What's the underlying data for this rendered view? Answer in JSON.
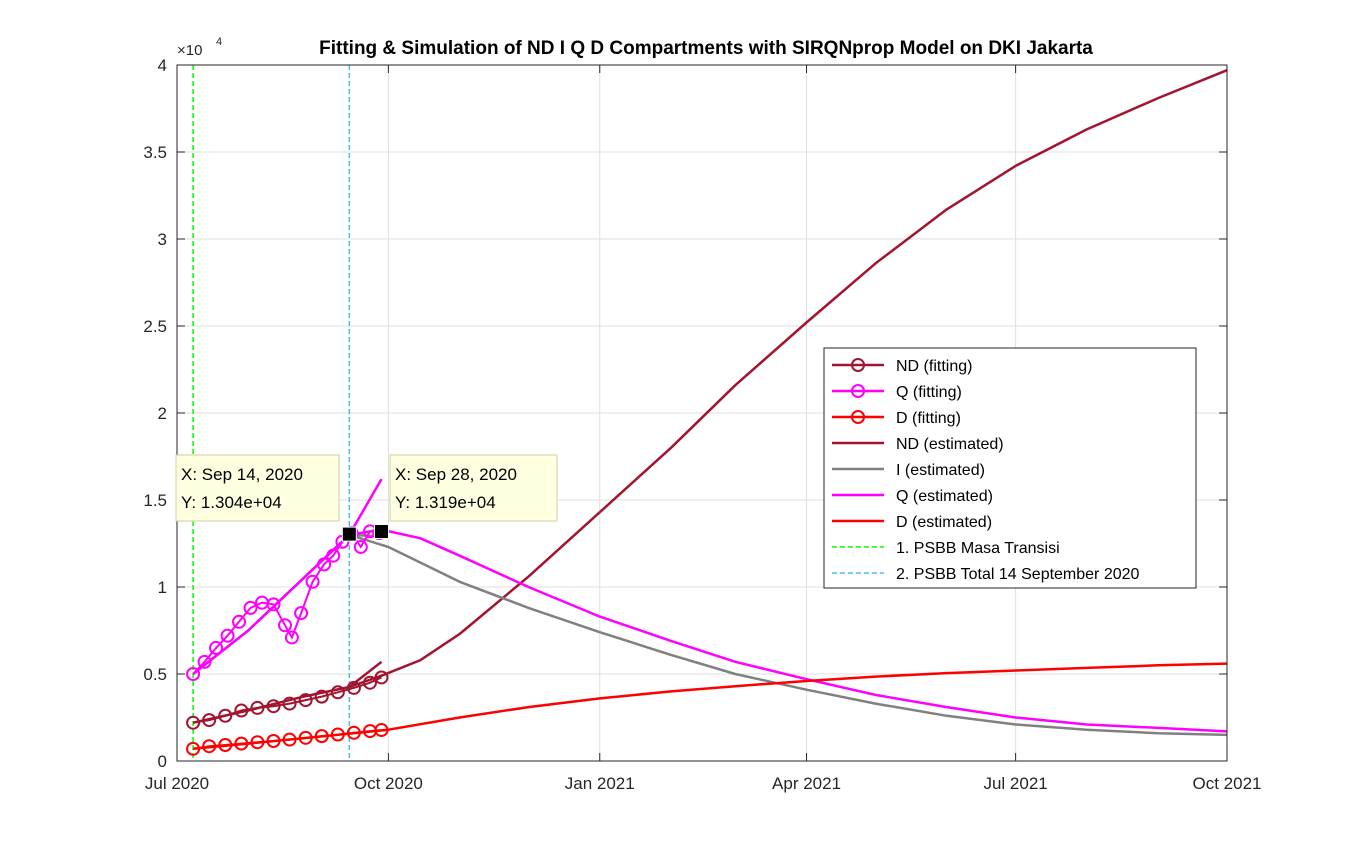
{
  "chart_data": {
    "type": "line",
    "title": "Fitting & Simulation of  ND I Q D Compartments with SIRQNprop Model on DKI Jakarta",
    "xlabel": "",
    "ylabel": "",
    "y_exponent_label": "×10",
    "y_exponent_power": "4",
    "x_range": [
      "2020-07-01",
      "2021-10-01"
    ],
    "ylim": [
      0,
      40000
    ],
    "x_ticks": [
      {
        "date": "2020-07-01",
        "label": "Jul 2020"
      },
      {
        "date": "2020-10-01",
        "label": "Oct 2020"
      },
      {
        "date": "2021-01-01",
        "label": "Jan 2021"
      },
      {
        "date": "2021-04-01",
        "label": "Apr 2021"
      },
      {
        "date": "2021-07-01",
        "label": "Jul 2021"
      },
      {
        "date": "2021-10-01",
        "label": "Oct 2021"
      }
    ],
    "y_ticks": [
      {
        "value": 0,
        "label": "0"
      },
      {
        "value": 5000,
        "label": "0.5"
      },
      {
        "value": 10000,
        "label": "1"
      },
      {
        "value": 15000,
        "label": "1.5"
      },
      {
        "value": 20000,
        "label": "2"
      },
      {
        "value": 25000,
        "label": "2.5"
      },
      {
        "value": 30000,
        "label": "3"
      },
      {
        "value": 35000,
        "label": "3.5"
      },
      {
        "value": 40000,
        "label": "4"
      }
    ],
    "grid": true,
    "legend_position": "right",
    "series": [
      {
        "name": "ND (fitting)",
        "kind": "markers",
        "color": "#a2142f",
        "points": [
          [
            "2020-07-08",
            2200
          ],
          [
            "2020-07-15",
            2350
          ],
          [
            "2020-07-22",
            2600
          ],
          [
            "2020-07-29",
            2900
          ],
          [
            "2020-08-05",
            3050
          ],
          [
            "2020-08-12",
            3150
          ],
          [
            "2020-08-19",
            3300
          ],
          [
            "2020-08-26",
            3500
          ],
          [
            "2020-09-02",
            3700
          ],
          [
            "2020-09-09",
            3950
          ],
          [
            "2020-09-16",
            4200
          ],
          [
            "2020-09-23",
            4500
          ],
          [
            "2020-09-28",
            4800
          ]
        ]
      },
      {
        "name": "Q (fitting)",
        "kind": "markers",
        "color": "#ff00ff",
        "points": [
          [
            "2020-07-08",
            5000
          ],
          [
            "2020-07-13",
            5700
          ],
          [
            "2020-07-18",
            6500
          ],
          [
            "2020-07-23",
            7200
          ],
          [
            "2020-07-28",
            8000
          ],
          [
            "2020-08-02",
            8800
          ],
          [
            "2020-08-07",
            9100
          ],
          [
            "2020-08-12",
            9000
          ],
          [
            "2020-08-17",
            7800
          ],
          [
            "2020-08-20",
            7100
          ],
          [
            "2020-08-24",
            8500
          ],
          [
            "2020-08-29",
            10300
          ],
          [
            "2020-09-03",
            11300
          ],
          [
            "2020-09-07",
            11800
          ],
          [
            "2020-09-11",
            12600
          ],
          [
            "2020-09-15",
            13100
          ],
          [
            "2020-09-19",
            12300
          ],
          [
            "2020-09-23",
            13200
          ],
          [
            "2020-09-27",
            13100
          ],
          [
            "2020-09-28",
            13190
          ]
        ]
      },
      {
        "name": "D (fitting)",
        "kind": "markers",
        "color": "#ff0000",
        "points": [
          [
            "2020-07-08",
            700
          ],
          [
            "2020-07-15",
            850
          ],
          [
            "2020-07-22",
            920
          ],
          [
            "2020-07-29",
            1000
          ],
          [
            "2020-08-05",
            1080
          ],
          [
            "2020-08-12",
            1150
          ],
          [
            "2020-08-19",
            1230
          ],
          [
            "2020-08-26",
            1330
          ],
          [
            "2020-09-02",
            1430
          ],
          [
            "2020-09-09",
            1520
          ],
          [
            "2020-09-16",
            1620
          ],
          [
            "2020-09-23",
            1720
          ],
          [
            "2020-09-28",
            1780
          ]
        ]
      },
      {
        "name": "ND (estimated)",
        "kind": "line",
        "color": "#a2142f",
        "points": [
          [
            "2020-07-08",
            2200
          ],
          [
            "2020-08-01",
            2900
          ],
          [
            "2020-08-25",
            3700
          ],
          [
            "2020-09-14",
            4250
          ],
          [
            "2020-09-28",
            4900
          ],
          [
            "2020-10-15",
            5800
          ],
          [
            "2020-11-01",
            7300
          ],
          [
            "2020-12-01",
            10600
          ],
          [
            "2021-01-01",
            14300
          ],
          [
            "2021-02-01",
            18000
          ],
          [
            "2021-03-01",
            21600
          ],
          [
            "2021-04-01",
            25200
          ],
          [
            "2021-05-01",
            28600
          ],
          [
            "2021-06-01",
            31700
          ],
          [
            "2021-07-01",
            34200
          ],
          [
            "2021-08-01",
            36300
          ],
          [
            "2021-09-01",
            38100
          ],
          [
            "2021-10-01",
            39700
          ]
        ]
      },
      {
        "name": "I (estimated)",
        "kind": "line",
        "color": "#808080",
        "points": [
          [
            "2020-07-08",
            5000
          ],
          [
            "2020-08-01",
            7500
          ],
          [
            "2020-08-25",
            10500
          ],
          [
            "2020-09-14",
            13000
          ],
          [
            "2020-10-01",
            12300
          ],
          [
            "2020-10-15",
            11400
          ],
          [
            "2020-11-01",
            10300
          ],
          [
            "2020-12-01",
            8800
          ],
          [
            "2021-01-01",
            7400
          ],
          [
            "2021-02-01",
            6100
          ],
          [
            "2021-03-01",
            5000
          ],
          [
            "2021-04-01",
            4100
          ],
          [
            "2021-05-01",
            3300
          ],
          [
            "2021-06-01",
            2600
          ],
          [
            "2021-07-01",
            2100
          ],
          [
            "2021-08-01",
            1800
          ],
          [
            "2021-09-01",
            1600
          ],
          [
            "2021-10-01",
            1500
          ]
        ]
      },
      {
        "name": "Q (estimated)",
        "kind": "line",
        "color": "#ff00ff",
        "points": [
          [
            "2020-07-08",
            5000
          ],
          [
            "2020-08-01",
            7500
          ],
          [
            "2020-08-25",
            10500
          ],
          [
            "2020-09-14",
            13000
          ],
          [
            "2020-09-28",
            13300
          ],
          [
            "2020-10-15",
            12800
          ],
          [
            "2020-11-01",
            11800
          ],
          [
            "2020-12-01",
            10000
          ],
          [
            "2021-01-01",
            8300
          ],
          [
            "2021-02-01",
            6900
          ],
          [
            "2021-03-01",
            5700
          ],
          [
            "2021-04-01",
            4700
          ],
          [
            "2021-05-01",
            3800
          ],
          [
            "2021-06-01",
            3100
          ],
          [
            "2021-07-01",
            2500
          ],
          [
            "2021-08-01",
            2100
          ],
          [
            "2021-09-01",
            1900
          ],
          [
            "2021-10-01",
            1700
          ]
        ]
      },
      {
        "name": "D (estimated)",
        "kind": "line",
        "color": "#ff0000",
        "points": [
          [
            "2020-07-08",
            700
          ],
          [
            "2020-08-01",
            1000
          ],
          [
            "2020-09-01",
            1400
          ],
          [
            "2020-10-01",
            1800
          ],
          [
            "2020-11-01",
            2500
          ],
          [
            "2020-12-01",
            3100
          ],
          [
            "2021-01-01",
            3600
          ],
          [
            "2021-02-01",
            4000
          ],
          [
            "2021-03-01",
            4300
          ],
          [
            "2021-04-01",
            4600
          ],
          [
            "2021-05-01",
            4850
          ],
          [
            "2021-06-01",
            5050
          ],
          [
            "2021-07-01",
            5200
          ],
          [
            "2021-08-01",
            5350
          ],
          [
            "2021-09-01",
            5500
          ],
          [
            "2021-10-01",
            5600
          ]
        ]
      },
      {
        "name": "1. PSBB Masa Transisi",
        "kind": "vline",
        "color": "#00ff00",
        "date": "2020-07-08"
      },
      {
        "name": "2. PSBB Total 14 September 2020",
        "kind": "vline",
        "color": "#4dbeee",
        "date": "2020-09-14"
      }
    ],
    "extra_lines": [
      {
        "color": "#a2142f",
        "points": [
          [
            "2020-09-14",
            4250
          ],
          [
            "2020-09-28",
            5700
          ]
        ]
      },
      {
        "color": "#ff00ff",
        "points": [
          [
            "2020-09-14",
            13000
          ],
          [
            "2020-09-28",
            16200
          ]
        ]
      },
      {
        "color": "#808080",
        "points": [
          [
            "2020-09-14",
            13000
          ],
          [
            "2020-09-28",
            12900
          ]
        ]
      }
    ],
    "datatips": [
      {
        "date": "2020-09-14",
        "value": 13040,
        "x_text": "X: Sep 14, 2020",
        "y_text": "Y: 1.304e+04"
      },
      {
        "date": "2020-09-28",
        "value": 13190,
        "x_text": "X: Sep 28, 2020",
        "y_text": "Y: 1.319e+04"
      }
    ]
  }
}
